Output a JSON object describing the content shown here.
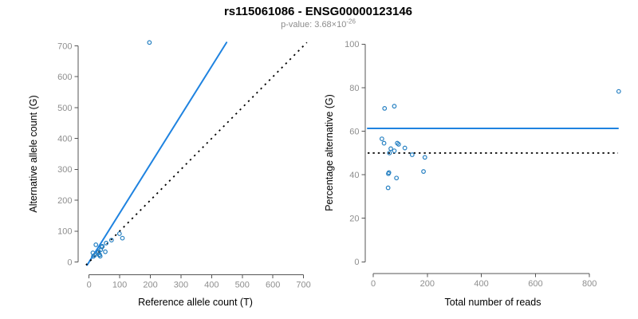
{
  "header": {
    "title": "rs115061086 - ENSG00000123146",
    "pvalue_label": "p-value: 3.68×10",
    "pvalue_exponent": "-26"
  },
  "style": {
    "point_color": "#2680c2",
    "accent_blue": "#1f83e0",
    "dotted_black": "#000000",
    "tick_label_color": "#8e8e8e",
    "axis_color": "#555555"
  },
  "chart_data": [
    {
      "type": "scatter",
      "name": "allele-counts-scatter",
      "xlabel": "Reference allele count (T)",
      "ylabel": "Alternative allele count (G)",
      "xlim": [
        0,
        712
      ],
      "ylim": [
        0,
        712
      ],
      "xticks": [
        0,
        100,
        200,
        300,
        400,
        500,
        600,
        700
      ],
      "yticks": [
        0,
        100,
        200,
        300,
        400,
        500,
        600,
        700
      ],
      "grid": false,
      "legend": "none",
      "points": [
        [
          12.4,
          29.6
        ],
        [
          22.2,
          55.8
        ],
        [
          13.9,
          18.1
        ],
        [
          18.2,
          21.8
        ],
        [
          31.2,
          33.8
        ],
        [
          40.5,
          48.5
        ],
        [
          43.2,
          50.8
        ],
        [
          55.8,
          61.2
        ],
        [
          30,
          30
        ],
        [
          38.2,
          39.8
        ],
        [
          73.2,
          70.8
        ],
        [
          99.3,
          91.7
        ],
        [
          108.8,
          77.2
        ],
        [
          34.2,
          23.8
        ],
        [
          33.3,
          22.7
        ],
        [
          52.9,
          33.1
        ],
        [
          36.3,
          18.7
        ],
        [
          197,
          711
        ]
      ],
      "lines": [
        {
          "name": "fit-line",
          "style": "solid",
          "color": "#1f83e0",
          "slope": 1.584,
          "intercept": 0
        },
        {
          "name": "identity-line",
          "style": "dotted",
          "color": "#000000",
          "slope": 1,
          "intercept": 0
        }
      ]
    },
    {
      "type": "scatter",
      "name": "percentage-scatter",
      "xlabel": "Total number of reads",
      "ylabel": "Percentage alternative (G)",
      "xlim": [
        0,
        908
      ],
      "ylim": [
        0,
        100
      ],
      "xticks": [
        0,
        200,
        400,
        600,
        800
      ],
      "yticks": [
        0,
        20,
        40,
        60,
        80,
        100
      ],
      "grid": false,
      "legend": "none",
      "points": [
        [
          42,
          70.5
        ],
        [
          78,
          71.5
        ],
        [
          32,
          56.5
        ],
        [
          40,
          54.5
        ],
        [
          65,
          52
        ],
        [
          89,
          54.5
        ],
        [
          94,
          54
        ],
        [
          117,
          52.3
        ],
        [
          60,
          50
        ],
        [
          78,
          51
        ],
        [
          144,
          49.2
        ],
        [
          191,
          48
        ],
        [
          186,
          41.5
        ],
        [
          58,
          41
        ],
        [
          56,
          40.5
        ],
        [
          86,
          38.5
        ],
        [
          55,
          34
        ],
        [
          908,
          78.3
        ]
      ],
      "hlines": [
        {
          "name": "mean-percentage-line",
          "style": "solid",
          "color": "#1f83e0",
          "y": 61.3
        },
        {
          "name": "fifty-percent-line",
          "style": "dotted",
          "color": "#000000",
          "y": 50
        }
      ]
    }
  ]
}
